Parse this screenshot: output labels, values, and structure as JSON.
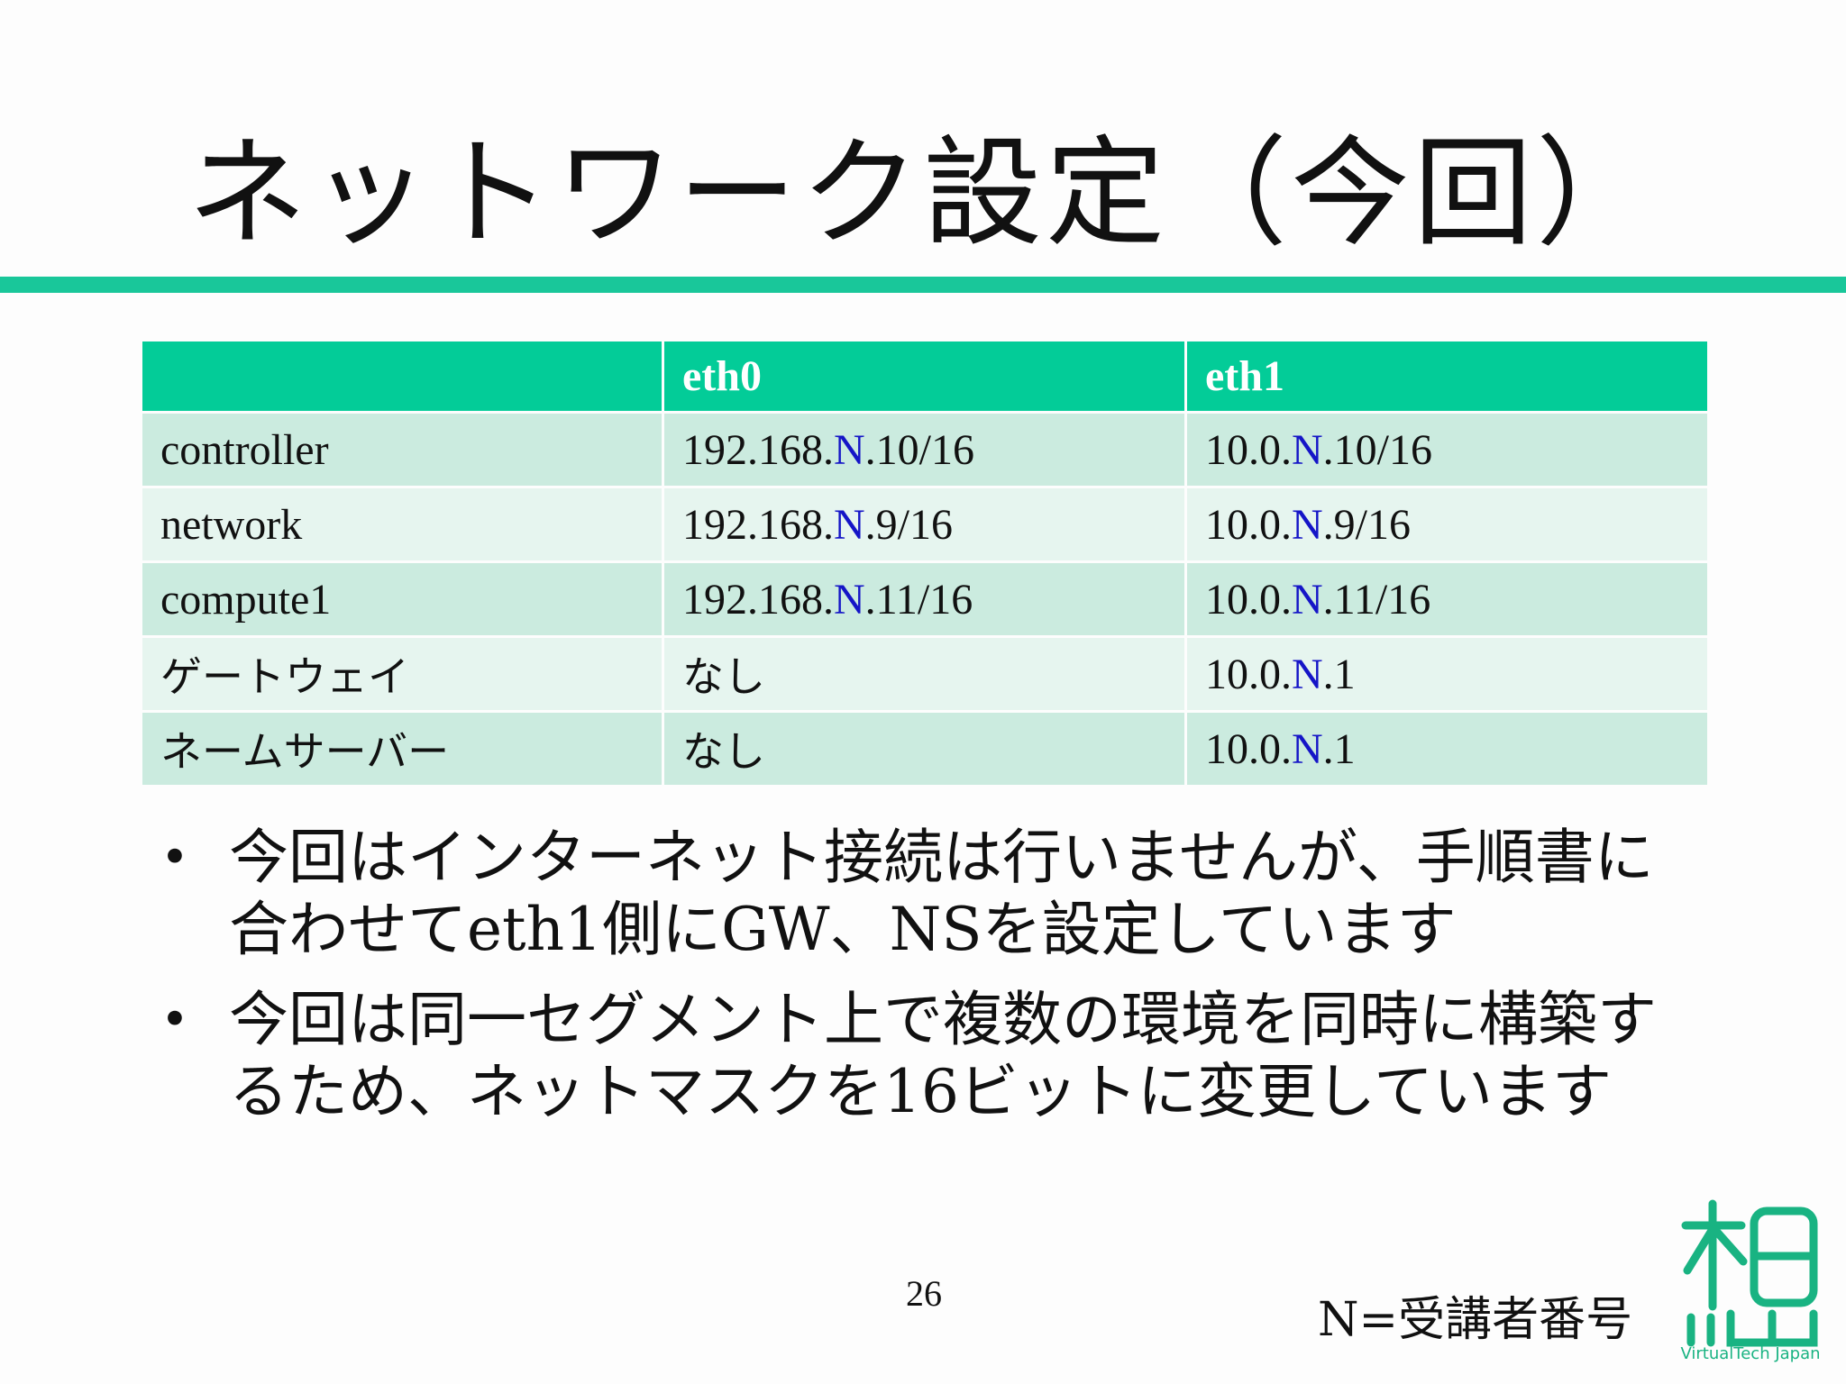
{
  "slide": {
    "title": "ネットワーク設定（今回）",
    "page_number": "26",
    "legend": "N=受講者番号",
    "logo_text": "VirtualTech Japan"
  },
  "table": {
    "headers": [
      "",
      "eth0",
      "eth1"
    ],
    "rows": [
      {
        "label": "controller",
        "eth0": [
          "192.168.",
          "N",
          ".10/16"
        ],
        "eth1": [
          "10.0.",
          "N",
          ".10/16"
        ]
      },
      {
        "label": "network",
        "eth0": [
          "192.168.",
          "N",
          ".9/16"
        ],
        "eth1": [
          "10.0.",
          "N",
          ".9/16"
        ]
      },
      {
        "label": "compute1",
        "eth0": [
          "192.168.",
          "N",
          ".11/16"
        ],
        "eth1": [
          "10.0.",
          "N",
          ".11/16"
        ]
      },
      {
        "label": "ゲートウェイ",
        "eth0": [
          "なし",
          "",
          ""
        ],
        "eth1": [
          "10.0.",
          "N",
          ".1"
        ]
      },
      {
        "label": "ネームサーバー",
        "eth0": [
          "なし",
          "",
          ""
        ],
        "eth1": [
          "10.0.",
          "N",
          ".1"
        ]
      }
    ]
  },
  "bullets": [
    "今回はインターネット接続は行いませんが、手順書に合わせてeth1側にGW、NSを設定しています",
    "今回は同一セグメント上で複数の環境を同時に構築するため、ネットマスクを16ビットに変更しています"
  ],
  "colors": {
    "accent": "#03cc98",
    "row_dark": "#cbebdf",
    "row_light": "#e6f5ef",
    "variable_text": "#1515c7"
  }
}
